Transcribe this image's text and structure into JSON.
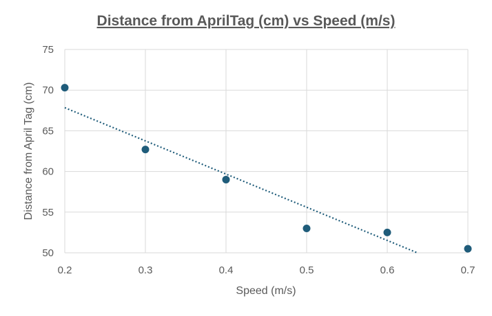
{
  "chart_data": {
    "type": "scatter",
    "title": "Distance from AprilTag (cm) vs Speed (m/s)",
    "xlabel": "Speed (m/s)",
    "ylabel": "Distance from April Tag (cm)",
    "xlim": [
      0.2,
      0.7
    ],
    "ylim": [
      50,
      75
    ],
    "xticks": [
      "0.2",
      "0.3",
      "0.4",
      "0.5",
      "0.6",
      "0.7"
    ],
    "yticks": [
      "50",
      "55",
      "60",
      "65",
      "70",
      "75"
    ],
    "grid": true,
    "legend": "none",
    "series": [
      {
        "x": [
          0.2,
          0.3,
          0.4,
          0.5,
          0.6,
          0.7
        ],
        "y": [
          70.3,
          62.7,
          59.0,
          53.0,
          52.5,
          50.5
        ],
        "color": "#1F5C7A"
      }
    ],
    "trendline": {
      "type": "linear",
      "style": "dotted",
      "color": "#1F5C7A",
      "slope": -40.8,
      "intercept": 76.0
    }
  }
}
